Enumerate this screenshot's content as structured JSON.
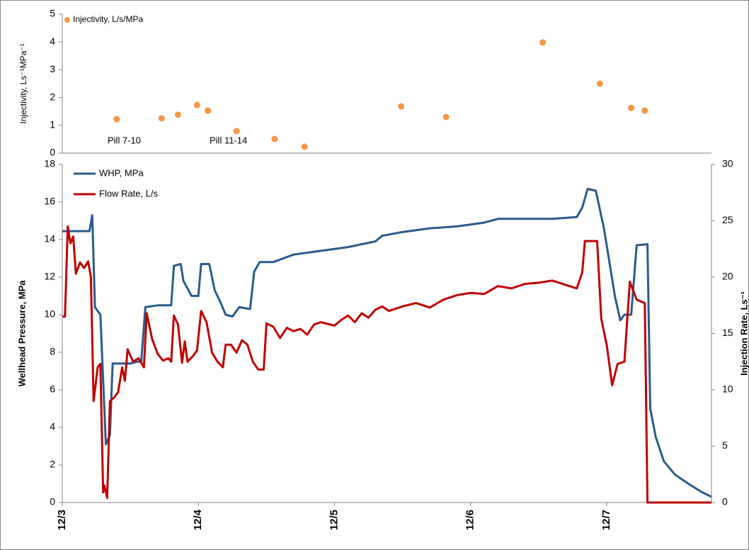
{
  "chart_data": [
    {
      "type": "scatter",
      "ylabel": "Injectivity, Ls⁻¹MPa⁻¹",
      "annotations": [
        "Pill 7-10",
        "Pill 11-14"
      ],
      "xlim": [
        0,
        4.77
      ],
      "ylim": [
        0,
        5
      ],
      "yticks": [
        0,
        1,
        2,
        3,
        4,
        5
      ],
      "series": [
        {
          "name": "Injectivity, L/s/MPa",
          "color": "#f79646",
          "x": [
            0.4,
            0.73,
            0.85,
            0.99,
            1.07,
            1.28,
            1.56,
            1.78,
            2.49,
            2.82,
            3.53,
            3.95,
            4.18,
            4.28
          ],
          "values": [
            1.22,
            1.25,
            1.38,
            1.73,
            1.53,
            0.79,
            0.51,
            0.23,
            1.68,
            1.3,
            3.98,
            2.5,
            1.63,
            1.53
          ]
        }
      ]
    },
    {
      "type": "line",
      "ylabel": "Wellhead Pressure, MPa",
      "y2label": "Injection Rate, Ls⁻¹",
      "xlim": [
        0,
        4.77
      ],
      "xticks": [
        {
          "value": 0,
          "label": "12/3"
        },
        {
          "value": 1,
          "label": "12/4"
        },
        {
          "value": 2,
          "label": "12/5"
        },
        {
          "value": 3,
          "label": "12/6"
        },
        {
          "value": 4,
          "label": "12/7"
        }
      ],
      "ylim": [
        0,
        18
      ],
      "yticks": [
        0,
        2,
        4,
        6,
        8,
        10,
        12,
        14,
        16,
        18
      ],
      "y2lim": [
        0,
        30
      ],
      "y2ticks": [
        0,
        5,
        10,
        15,
        20,
        25,
        30
      ],
      "series": [
        {
          "name": "WHP, MPa",
          "color": "#2a5a8c",
          "x": [
            0,
            0.2,
            0.22,
            0.24,
            0.28,
            0.32,
            0.35,
            0.37,
            0.45,
            0.5,
            0.55,
            0.58,
            0.61,
            0.7,
            0.8,
            0.82,
            0.87,
            0.89,
            0.95,
            1.0,
            1.02,
            1.08,
            1.12,
            1.16,
            1.2,
            1.25,
            1.3,
            1.38,
            1.41,
            1.45,
            1.55,
            1.7,
            1.9,
            2.1,
            2.3,
            2.35,
            2.5,
            2.7,
            2.9,
            3.1,
            3.2,
            3.4,
            3.6,
            3.78,
            3.82,
            3.86,
            3.92,
            3.98,
            4.06,
            4.1,
            4.13,
            4.18,
            4.22,
            4.3,
            4.32,
            4.36,
            4.42,
            4.5,
            4.6,
            4.7,
            4.77
          ],
          "values": [
            14.45,
            14.45,
            15.3,
            10.4,
            10.0,
            3.1,
            3.6,
            7.4,
            7.4,
            7.4,
            7.5,
            7.5,
            10.4,
            10.5,
            10.5,
            12.6,
            12.7,
            11.8,
            11.0,
            11.0,
            12.7,
            12.7,
            11.3,
            10.7,
            10.0,
            9.9,
            10.4,
            10.3,
            12.3,
            12.8,
            12.8,
            13.2,
            13.4,
            13.6,
            13.9,
            14.2,
            14.4,
            14.6,
            14.7,
            14.9,
            15.1,
            15.1,
            15.1,
            15.2,
            15.7,
            16.7,
            16.6,
            14.6,
            11.0,
            9.7,
            10.0,
            10.0,
            13.7,
            13.75,
            5.0,
            3.5,
            2.2,
            1.5,
            1.0,
            0.55,
            0.3
          ]
        },
        {
          "name": "Flow Rate, L/s",
          "color": "#c00000",
          "axis": "y2",
          "x": [
            0,
            0.02,
            0.04,
            0.06,
            0.08,
            0.1,
            0.13,
            0.16,
            0.19,
            0.21,
            0.23,
            0.26,
            0.28,
            0.3,
            0.31,
            0.33,
            0.35,
            0.38,
            0.41,
            0.44,
            0.46,
            0.48,
            0.52,
            0.56,
            0.6,
            0.62,
            0.66,
            0.7,
            0.74,
            0.78,
            0.8,
            0.82,
            0.85,
            0.88,
            0.9,
            0.92,
            0.96,
            0.99,
            1.02,
            1.06,
            1.1,
            1.14,
            1.18,
            1.2,
            1.24,
            1.28,
            1.32,
            1.36,
            1.4,
            1.44,
            1.48,
            1.5,
            1.55,
            1.6,
            1.65,
            1.7,
            1.75,
            1.8,
            1.85,
            1.9,
            2.0,
            2.05,
            2.1,
            2.15,
            2.2,
            2.25,
            2.3,
            2.35,
            2.4,
            2.5,
            2.6,
            2.7,
            2.8,
            2.9,
            3.0,
            3.1,
            3.2,
            3.3,
            3.4,
            3.5,
            3.6,
            3.7,
            3.78,
            3.82,
            3.84,
            3.93,
            3.96,
            4.0,
            4.04,
            4.08,
            4.13,
            4.17,
            4.22,
            4.28,
            4.3,
            4.77
          ],
          "values": [
            16.5,
            16.5,
            24.5,
            23.0,
            23.6,
            20.3,
            21.3,
            20.8,
            21.4,
            20.0,
            9.0,
            12.0,
            12.3,
            0.9,
            1.5,
            0.4,
            9.0,
            9.3,
            9.8,
            12.0,
            10.8,
            13.6,
            12.5,
            12.8,
            12.0,
            16.8,
            14.5,
            13.2,
            12.6,
            12.8,
            12.5,
            16.6,
            15.8,
            12.4,
            14.3,
            12.5,
            13.0,
            13.5,
            17.0,
            16.0,
            13.3,
            12.5,
            12.0,
            14.0,
            14.0,
            13.3,
            14.4,
            14.0,
            12.5,
            11.8,
            11.8,
            15.9,
            15.6,
            14.6,
            15.5,
            15.2,
            15.4,
            14.9,
            15.8,
            16.0,
            15.7,
            16.2,
            16.6,
            16.0,
            16.8,
            16.4,
            17.1,
            17.4,
            17.0,
            17.4,
            17.7,
            17.3,
            18.0,
            18.4,
            18.6,
            18.5,
            19.2,
            19.0,
            19.4,
            19.5,
            19.7,
            19.3,
            19.0,
            20.4,
            23.2,
            23.2,
            16.3,
            14.0,
            10.4,
            12.3,
            12.5,
            19.6,
            18.0,
            17.7,
            0,
            0
          ]
        }
      ]
    }
  ]
}
